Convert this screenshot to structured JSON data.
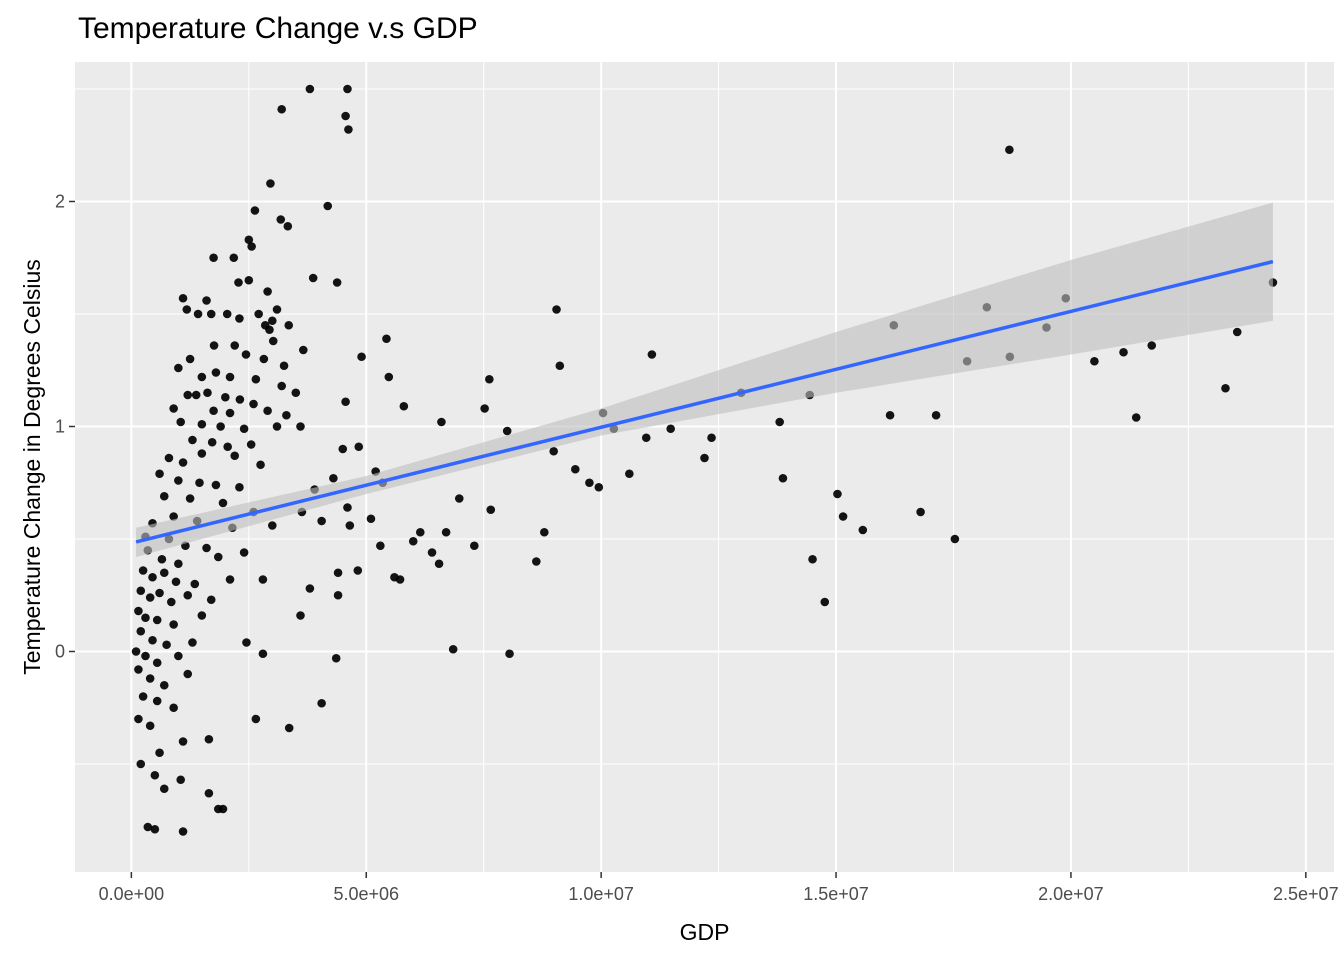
{
  "chart_data": {
    "type": "scatter",
    "title": "Temperature Change v.s GDP",
    "xlabel": "GDP",
    "ylabel": "Temperature Change in Degrees Celsius",
    "xlim": [
      -1200000,
      25600000
    ],
    "ylim": [
      -0.98,
      2.62
    ],
    "x_ticks": [
      {
        "value": 0,
        "label": "0.0e+00"
      },
      {
        "value": 5000000,
        "label": "5.0e+06"
      },
      {
        "value": 10000000,
        "label": "1.0e+07"
      },
      {
        "value": 15000000,
        "label": "1.5e+07"
      },
      {
        "value": 20000000,
        "label": "2.0e+07"
      },
      {
        "value": 25000000,
        "label": "2.5e+07"
      }
    ],
    "y_ticks": [
      {
        "value": 0,
        "label": "0"
      },
      {
        "value": 1,
        "label": "1"
      },
      {
        "value": 2,
        "label": "2"
      }
    ],
    "grid": true,
    "background": "#ebebeb",
    "point_color": "#000000",
    "smooth": {
      "method": "linear fit with confidence band",
      "color": "#3366ff",
      "band_color": "#bebebe",
      "line": [
        [
          100000,
          0.487
        ],
        [
          24300000,
          1.733
        ]
      ],
      "band_upper": [
        [
          100000,
          0.55
        ],
        [
          5000000,
          0.78
        ],
        [
          10000000,
          1.08
        ],
        [
          15000000,
          1.42
        ],
        [
          20000000,
          1.74
        ],
        [
          24300000,
          1.995
        ]
      ],
      "band_lower": [
        [
          100000,
          0.42
        ],
        [
          5000000,
          0.7
        ],
        [
          10000000,
          0.96
        ],
        [
          15000000,
          1.15
        ],
        [
          20000000,
          1.32
        ],
        [
          24300000,
          1.47
        ]
      ]
    },
    "points": [
      [
        3800000,
        2.5
      ],
      [
        4600000,
        2.5
      ],
      [
        3200000,
        2.41
      ],
      [
        4560000,
        2.38
      ],
      [
        4620000,
        2.32
      ],
      [
        2960000,
        2.08
      ],
      [
        4180000,
        1.98
      ],
      [
        2630000,
        1.96
      ],
      [
        3180000,
        1.92
      ],
      [
        3330000,
        1.89
      ],
      [
        2500000,
        1.83
      ],
      [
        2560000,
        1.8
      ],
      [
        2180000,
        1.75
      ],
      [
        1750000,
        1.75
      ],
      [
        3870000,
        1.66
      ],
      [
        4380000,
        1.64
      ],
      [
        1100000,
        1.57
      ],
      [
        1180000,
        1.52
      ],
      [
        1600000,
        1.56
      ],
      [
        2280000,
        1.64
      ],
      [
        2500000,
        1.65
      ],
      [
        2900000,
        1.6
      ],
      [
        3100000,
        1.52
      ],
      [
        1420000,
        1.5
      ],
      [
        1700000,
        1.5
      ],
      [
        2040000,
        1.5
      ],
      [
        2300000,
        1.48
      ],
      [
        2710000,
        1.5
      ],
      [
        3000000,
        1.47
      ],
      [
        2850000,
        1.45
      ],
      [
        3350000,
        1.45
      ],
      [
        2940000,
        1.43
      ],
      [
        1250000,
        1.3
      ],
      [
        1760000,
        1.36
      ],
      [
        2200000,
        1.36
      ],
      [
        3020000,
        1.38
      ],
      [
        3660000,
        1.34
      ],
      [
        2440000,
        1.32
      ],
      [
        2820000,
        1.3
      ],
      [
        3250000,
        1.27
      ],
      [
        1500000,
        1.22
      ],
      [
        1000000,
        1.26
      ],
      [
        1800000,
        1.24
      ],
      [
        2100000,
        1.22
      ],
      [
        2650000,
        1.21
      ],
      [
        3200000,
        1.18
      ],
      [
        3500000,
        1.15
      ],
      [
        1200000,
        1.14
      ],
      [
        1380000,
        1.14
      ],
      [
        1620000,
        1.15
      ],
      [
        2000000,
        1.13
      ],
      [
        2310000,
        1.12
      ],
      [
        2600000,
        1.1
      ],
      [
        900000,
        1.08
      ],
      [
        1750000,
        1.07
      ],
      [
        2100000,
        1.06
      ],
      [
        2900000,
        1.07
      ],
      [
        3300000,
        1.05
      ],
      [
        1050000,
        1.02
      ],
      [
        1500000,
        1.01
      ],
      [
        1900000,
        1.0
      ],
      [
        2400000,
        0.99
      ],
      [
        3100000,
        1.0
      ],
      [
        3600000,
        1.0
      ],
      [
        1300000,
        0.94
      ],
      [
        1720000,
        0.93
      ],
      [
        2050000,
        0.91
      ],
      [
        2550000,
        0.92
      ],
      [
        800000,
        0.86
      ],
      [
        1100000,
        0.84
      ],
      [
        1500000,
        0.88
      ],
      [
        2200000,
        0.87
      ],
      [
        2750000,
        0.83
      ],
      [
        600000,
        0.79
      ],
      [
        1000000,
        0.76
      ],
      [
        1450000,
        0.75
      ],
      [
        1800000,
        0.74
      ],
      [
        2300000,
        0.73
      ],
      [
        700000,
        0.69
      ],
      [
        1250000,
        0.68
      ],
      [
        1950000,
        0.66
      ],
      [
        2600000,
        0.62
      ],
      [
        450000,
        0.57
      ],
      [
        900000,
        0.6
      ],
      [
        1400000,
        0.58
      ],
      [
        2150000,
        0.55
      ],
      [
        3000000,
        0.56
      ],
      [
        300000,
        0.51
      ],
      [
        800000,
        0.5
      ],
      [
        1150000,
        0.47
      ],
      [
        1600000,
        0.46
      ],
      [
        2400000,
        0.44
      ],
      [
        350000,
        0.45
      ],
      [
        650000,
        0.41
      ],
      [
        1000000,
        0.39
      ],
      [
        1850000,
        0.42
      ],
      [
        250000,
        0.36
      ],
      [
        450000,
        0.33
      ],
      [
        700000,
        0.35
      ],
      [
        950000,
        0.31
      ],
      [
        1350000,
        0.3
      ],
      [
        2100000,
        0.32
      ],
      [
        200000,
        0.27
      ],
      [
        400000,
        0.24
      ],
      [
        600000,
        0.26
      ],
      [
        850000,
        0.22
      ],
      [
        1200000,
        0.25
      ],
      [
        1700000,
        0.23
      ],
      [
        150000,
        0.18
      ],
      [
        300000,
        0.15
      ],
      [
        550000,
        0.14
      ],
      [
        900000,
        0.12
      ],
      [
        1500000,
        0.16
      ],
      [
        200000,
        0.09
      ],
      [
        450000,
        0.05
      ],
      [
        750000,
        0.03
      ],
      [
        1300000,
        0.04
      ],
      [
        100000,
        0.0
      ],
      [
        300000,
        -0.02
      ],
      [
        550000,
        -0.05
      ],
      [
        1000000,
        -0.02
      ],
      [
        150000,
        -0.08
      ],
      [
        400000,
        -0.12
      ],
      [
        700000,
        -0.15
      ],
      [
        1200000,
        -0.1
      ],
      [
        250000,
        -0.2
      ],
      [
        550000,
        -0.22
      ],
      [
        900000,
        -0.25
      ],
      [
        150000,
        -0.3
      ],
      [
        400000,
        -0.33
      ],
      [
        1100000,
        -0.4
      ],
      [
        600000,
        -0.45
      ],
      [
        200000,
        -0.5
      ],
      [
        500000,
        -0.55
      ],
      [
        1050000,
        -0.57
      ],
      [
        350000,
        -0.78
      ],
      [
        500000,
        -0.79
      ],
      [
        1100000,
        -0.8
      ],
      [
        700000,
        -0.61
      ],
      [
        1650000,
        -0.63
      ],
      [
        1850000,
        -0.7
      ],
      [
        1950000,
        -0.7
      ],
      [
        1650000,
        -0.39
      ],
      [
        2450000,
        0.04
      ],
      [
        2800000,
        -0.01
      ],
      [
        2650000,
        -0.3
      ],
      [
        3360000,
        -0.34
      ],
      [
        2800000,
        0.32
      ],
      [
        3600000,
        0.16
      ],
      [
        3800000,
        0.28
      ],
      [
        4050000,
        -0.23
      ],
      [
        4360000,
        -0.03
      ],
      [
        4400000,
        0.25
      ],
      [
        3630000,
        0.62
      ],
      [
        3900000,
        0.72
      ],
      [
        4050000,
        0.58
      ],
      [
        4300000,
        0.77
      ],
      [
        4600000,
        0.64
      ],
      [
        4650000,
        0.56
      ],
      [
        4840000,
        0.91
      ],
      [
        4900000,
        1.31
      ],
      [
        5100000,
        0.59
      ],
      [
        5200000,
        0.8
      ],
      [
        5300000,
        0.47
      ],
      [
        5350000,
        0.75
      ],
      [
        5430000,
        1.39
      ],
      [
        5480000,
        1.22
      ],
      [
        5600000,
        0.33
      ],
      [
        5720000,
        0.32
      ],
      [
        5800000,
        1.09
      ],
      [
        4560000,
        1.11
      ],
      [
        4500000,
        0.9
      ],
      [
        4820000,
        0.36
      ],
      [
        4400000,
        0.35
      ],
      [
        6000000,
        0.49
      ],
      [
        6150000,
        0.53
      ],
      [
        6400000,
        0.44
      ],
      [
        6550000,
        0.39
      ],
      [
        6600000,
        1.02
      ],
      [
        6700000,
        0.53
      ],
      [
        6850000,
        0.01
      ],
      [
        6980000,
        0.68
      ],
      [
        7300000,
        0.47
      ],
      [
        7520000,
        1.08
      ],
      [
        7650000,
        0.63
      ],
      [
        7620000,
        1.21
      ],
      [
        8000000,
        0.98
      ],
      [
        8050000,
        -0.01
      ],
      [
        8620000,
        0.4
      ],
      [
        8790000,
        0.53
      ],
      [
        8990000,
        0.89
      ],
      [
        9050000,
        1.52
      ],
      [
        9120000,
        1.27
      ],
      [
        9450000,
        0.81
      ],
      [
        9750000,
        0.75
      ],
      [
        9950000,
        0.73
      ],
      [
        10040000,
        1.06
      ],
      [
        10270000,
        0.99
      ],
      [
        10600000,
        0.79
      ],
      [
        10960000,
        0.95
      ],
      [
        11080000,
        1.32
      ],
      [
        11480000,
        0.99
      ],
      [
        12200000,
        0.86
      ],
      [
        12350000,
        0.95
      ],
      [
        12980000,
        1.15
      ],
      [
        13800000,
        1.02
      ],
      [
        13870000,
        0.77
      ],
      [
        14440000,
        1.14
      ],
      [
        14500000,
        0.41
      ],
      [
        14760000,
        0.22
      ],
      [
        15030000,
        0.7
      ],
      [
        15150000,
        0.6
      ],
      [
        15570000,
        0.54
      ],
      [
        16150000,
        1.05
      ],
      [
        16230000,
        1.45
      ],
      [
        16800000,
        0.62
      ],
      [
        17130000,
        1.05
      ],
      [
        17530000,
        0.5
      ],
      [
        17790000,
        1.29
      ],
      [
        18210000,
        1.53
      ],
      [
        18690000,
        2.23
      ],
      [
        18700000,
        1.31
      ],
      [
        19480000,
        1.44
      ],
      [
        19890000,
        1.57
      ],
      [
        20500000,
        1.29
      ],
      [
        21120000,
        1.33
      ],
      [
        21390000,
        1.04
      ],
      [
        21720000,
        1.36
      ],
      [
        23290000,
        1.17
      ],
      [
        23540000,
        1.42
      ],
      [
        24300000,
        1.64
      ]
    ]
  }
}
